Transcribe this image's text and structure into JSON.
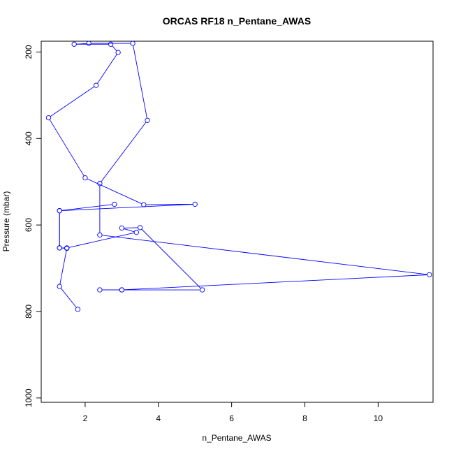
{
  "chart_data": {
    "type": "line",
    "title": "ORCAS RF18 n_Pentane_AWAS",
    "xlabel": "n_Pentane_AWAS",
    "ylabel": "Pressure (mbar)",
    "xlim": [
      0.8,
      11.5
    ],
    "ylim": [
      1010,
      175
    ],
    "y_reversed": true,
    "xticks": [
      2,
      4,
      6,
      8,
      10
    ],
    "yticks": [
      200,
      400,
      600,
      800,
      1000
    ],
    "grid": false,
    "markers": "open-circle",
    "series_color": "#0000ff",
    "series": [
      {
        "x": [
          1.8,
          1.3,
          1.5,
          1.3,
          1.3,
          5.0,
          3.6,
          2.0,
          1.0,
          2.3,
          2.9,
          2.7,
          1.7,
          2.1,
          3.3,
          3.7,
          2.4,
          2.4,
          11.4,
          3.0,
          2.4,
          3.0,
          5.2,
          3.5,
          3.0,
          3.4,
          1.5,
          1.3,
          1.3,
          2.8
        ],
        "y": [
          795,
          742,
          654,
          653,
          567,
          552,
          553,
          491,
          352,
          277,
          201,
          182,
          182,
          180,
          180,
          358,
          504,
          623,
          715,
          750,
          750,
          750,
          750,
          606,
          607,
          617,
          653,
          653,
          567,
          552
        ]
      }
    ]
  }
}
